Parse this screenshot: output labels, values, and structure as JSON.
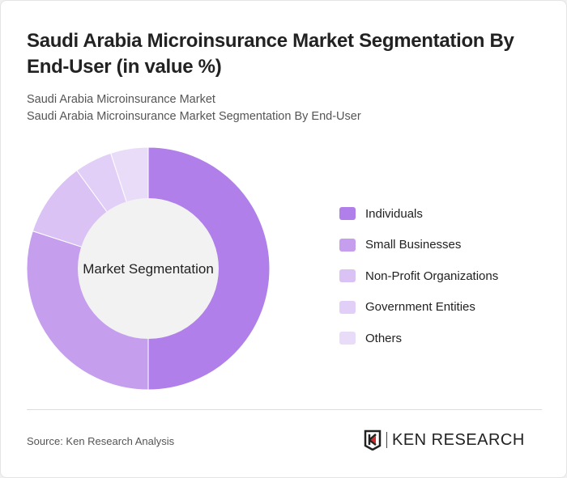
{
  "title": "Saudi Arabia Microinsurance Market Segmentation By End-User (in value %)",
  "subtitle1": "Saudi Arabia Microinsurance Market",
  "subtitle2": "Saudi Arabia Microinsurance Market Segmentation By End-User",
  "chart_data": {
    "type": "pie",
    "donut": true,
    "center_label": "Market Segmentation",
    "categories": [
      "Individuals",
      "Small Businesses",
      "Non-Profit Organizations",
      "Government Entities",
      "Others"
    ],
    "values": [
      50,
      30,
      10,
      5,
      5
    ],
    "colors": [
      "#b07fea",
      "#c59eee",
      "#dac2f5",
      "#e1cff7",
      "#e9dcf9"
    ],
    "legend_position": "right"
  },
  "source": "Source: Ken Research Analysis",
  "logo_text": "KEN RESEARCH"
}
